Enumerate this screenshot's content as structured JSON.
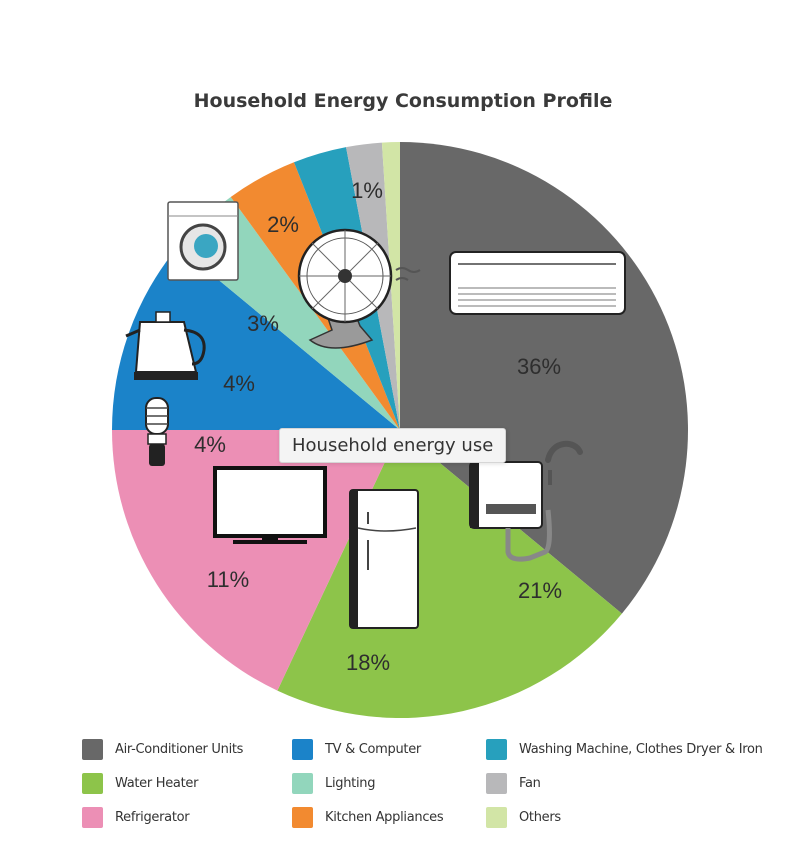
{
  "chart_data": {
    "type": "pie",
    "title": "Household Energy Consumption Profile",
    "slices": [
      {
        "label": "Air-Conditioner Units",
        "value": 36,
        "value_label": "36%",
        "color": "#686868",
        "icon": "air-conditioner-icon"
      },
      {
        "label": "Water Heater",
        "value": 21,
        "value_label": "21%",
        "color": "#8dc44a",
        "icon": "water-heater-icon"
      },
      {
        "label": "Refrigerator",
        "value": 18,
        "value_label": "18%",
        "color": "#ec8fb5",
        "icon": "refrigerator-icon"
      },
      {
        "label": "TV & Computer",
        "value": 11,
        "value_label": "11%",
        "color": "#1b83c9",
        "icon": "tv-icon"
      },
      {
        "label": "Lighting",
        "value": 4,
        "value_label": "4%",
        "color": "#92d6bc",
        "icon": "light-bulb-icon"
      },
      {
        "label": "Kitchen Appliances",
        "value": 4,
        "value_label": "4%",
        "color": "#f28a30",
        "icon": "kettle-icon"
      },
      {
        "label": "Washing Machine, Clothes Dryer & Iron",
        "value": 3,
        "value_label": "3%",
        "color": "#27a0bd",
        "icon": "washing-machine-icon"
      },
      {
        "label": "Fan",
        "value": 2,
        "value_label": "2%",
        "color": "#b8b8ba",
        "icon": "fan-icon"
      },
      {
        "label": "Others",
        "value": 1,
        "value_label": "1%",
        "color": "#d2e5a6",
        "icon": ""
      }
    ],
    "legend": {
      "placement": "bottom",
      "columns": [
        [
          "Air-Conditioner Units",
          "Water Heater",
          "Refrigerator"
        ],
        [
          "TV & Computer",
          "Lighting",
          "Kitchen Appliances"
        ],
        [
          "Washing Machine, Clothes Dryer & Iron",
          "Fan",
          "Others"
        ]
      ]
    }
  },
  "tooltip": {
    "text": "Household energy use"
  }
}
